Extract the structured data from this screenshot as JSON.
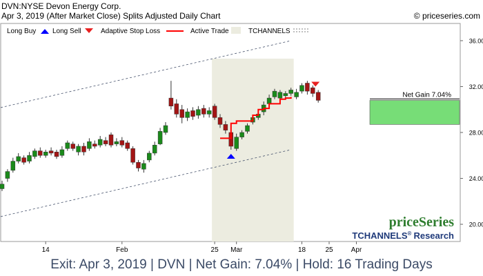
{
  "header": {
    "symbol_line": "DVN:NYSE Devon Energy Corp.",
    "date_line": "Apr 3, 2019 (After Market Close)  Splits Adjusted Daily Chart",
    "copyright": "© priceseries.com"
  },
  "legend": {
    "long_buy": "Long Buy",
    "long_sell": "Long Sell",
    "adaptive_stop": "Adaptive Stop Loss",
    "active_trade": "Active Trade",
    "tchannels": "TCHANNELS"
  },
  "colors": {
    "up_candle": "#1a8a1a",
    "down_candle": "#a31515",
    "stop_line": "#ff0000",
    "trade_shade": "#ecece0",
    "buy_arrow": "#0000ff",
    "sell_arrow": "#e82020",
    "gain_box": "#77dd77",
    "footer_text": "#3b4a66"
  },
  "branding": {
    "logo": "priceSeries",
    "sub": "TCHANNELS",
    "sup": "®",
    "research": "Research"
  },
  "annotation": {
    "net_gain_label": "Net Gain 7.04%"
  },
  "footer": {
    "text": "Exit: Apr 3, 2019 | DVN | Net Gain: 7.04% | Hold: 16 Trading Days"
  },
  "chart_data": {
    "type": "candlestick",
    "ylim": [
      18.5,
      37.5
    ],
    "y_ticks": [
      20,
      24,
      28,
      32,
      36
    ],
    "y_tick_labels": [
      "20.00",
      "24.00",
      "28.00",
      "32.00",
      "36.00"
    ],
    "x_tick_labels": [
      {
        "label": "14",
        "index": 8
      },
      {
        "label": "Feb",
        "index": 22
      },
      {
        "label": "25",
        "index": 39
      },
      {
        "label": "Mar",
        "index": 43
      },
      {
        "label": "18",
        "index": 55
      },
      {
        "label": "25",
        "index": 60
      },
      {
        "label": "Apr",
        "index": 65
      }
    ],
    "candles": [
      {
        "o": 23.1,
        "c": 23.5,
        "h": 23.8,
        "l": 22.9
      },
      {
        "o": 24.0,
        "c": 24.6,
        "h": 24.8,
        "l": 23.7
      },
      {
        "o": 24.7,
        "c": 25.5,
        "h": 25.8,
        "l": 24.5
      },
      {
        "o": 25.5,
        "c": 25.9,
        "h": 26.2,
        "l": 25.3
      },
      {
        "o": 25.8,
        "c": 25.4,
        "h": 26.0,
        "l": 25.2
      },
      {
        "o": 25.5,
        "c": 26.0,
        "h": 26.3,
        "l": 25.3
      },
      {
        "o": 25.9,
        "c": 26.4,
        "h": 26.6,
        "l": 25.7
      },
      {
        "o": 26.4,
        "c": 26.0,
        "h": 26.7,
        "l": 25.8
      },
      {
        "o": 26.0,
        "c": 26.3,
        "h": 26.5,
        "l": 25.8
      },
      {
        "o": 26.4,
        "c": 26.2,
        "h": 26.7,
        "l": 26.0
      },
      {
        "o": 26.3,
        "c": 25.9,
        "h": 26.5,
        "l": 25.7
      },
      {
        "o": 26.0,
        "c": 26.5,
        "h": 26.8,
        "l": 25.8
      },
      {
        "o": 26.6,
        "c": 27.1,
        "h": 27.3,
        "l": 26.4
      },
      {
        "o": 27.0,
        "c": 26.6,
        "h": 27.2,
        "l": 26.4
      },
      {
        "o": 26.3,
        "c": 26.8,
        "h": 27.0,
        "l": 26.0
      },
      {
        "o": 26.8,
        "c": 26.3,
        "h": 27.1,
        "l": 26.0
      },
      {
        "o": 26.6,
        "c": 27.2,
        "h": 27.5,
        "l": 26.4
      },
      {
        "o": 27.0,
        "c": 26.8,
        "h": 27.3,
        "l": 26.6
      },
      {
        "o": 26.9,
        "c": 27.4,
        "h": 27.7,
        "l": 26.7
      },
      {
        "o": 27.3,
        "c": 27.0,
        "h": 27.6,
        "l": 26.8
      },
      {
        "o": 27.8,
        "c": 26.9,
        "h": 28.0,
        "l": 26.7
      },
      {
        "o": 27.0,
        "c": 27.2,
        "h": 27.5,
        "l": 26.8
      },
      {
        "o": 27.3,
        "c": 26.9,
        "h": 27.6,
        "l": 26.7
      },
      {
        "o": 27.1,
        "c": 26.6,
        "h": 27.3,
        "l": 26.4
      },
      {
        "o": 26.6,
        "c": 25.4,
        "h": 26.8,
        "l": 25.2
      },
      {
        "o": 25.4,
        "c": 24.9,
        "h": 25.6,
        "l": 24.6
      },
      {
        "o": 24.8,
        "c": 25.3,
        "h": 25.6,
        "l": 24.5
      },
      {
        "o": 25.6,
        "c": 26.2,
        "h": 26.4,
        "l": 25.4
      },
      {
        "o": 26.2,
        "c": 26.9,
        "h": 27.2,
        "l": 26.0
      },
      {
        "o": 27.0,
        "c": 28.1,
        "h": 28.4,
        "l": 26.9
      },
      {
        "o": 28.0,
        "c": 28.6,
        "h": 28.9,
        "l": 27.8
      },
      {
        "o": 31.0,
        "c": 30.3,
        "h": 32.5,
        "l": 30.0
      },
      {
        "o": 30.5,
        "c": 29.6,
        "h": 30.9,
        "l": 29.3
      },
      {
        "o": 30.0,
        "c": 29.3,
        "h": 30.4,
        "l": 28.8
      },
      {
        "o": 29.3,
        "c": 29.8,
        "h": 30.1,
        "l": 29.0
      },
      {
        "o": 29.9,
        "c": 29.4,
        "h": 30.2,
        "l": 29.1
      },
      {
        "o": 29.5,
        "c": 30.0,
        "h": 30.3,
        "l": 29.2
      },
      {
        "o": 30.1,
        "c": 29.6,
        "h": 30.4,
        "l": 29.3
      },
      {
        "o": 29.6,
        "c": 29.9,
        "h": 30.2,
        "l": 29.3
      },
      {
        "o": 30.3,
        "c": 29.3,
        "h": 30.5,
        "l": 29.1
      },
      {
        "o": 29.3,
        "c": 28.7,
        "h": 29.6,
        "l": 28.4
      },
      {
        "o": 28.7,
        "c": 28.2,
        "h": 29.0,
        "l": 27.9
      },
      {
        "o": 28.0,
        "c": 26.8,
        "h": 28.2,
        "l": 26.5
      },
      {
        "o": 26.6,
        "c": 27.6,
        "h": 27.9,
        "l": 26.4
      },
      {
        "o": 27.6,
        "c": 28.0,
        "h": 28.2,
        "l": 27.4
      },
      {
        "o": 28.1,
        "c": 28.6,
        "h": 28.8,
        "l": 27.9
      },
      {
        "o": 28.9,
        "c": 29.3,
        "h": 29.5,
        "l": 28.7
      },
      {
        "o": 29.3,
        "c": 29.6,
        "h": 29.8,
        "l": 29.1
      },
      {
        "o": 29.8,
        "c": 30.4,
        "h": 30.7,
        "l": 29.5
      },
      {
        "o": 30.5,
        "c": 31.0,
        "h": 31.3,
        "l": 30.3
      },
      {
        "o": 31.1,
        "c": 31.6,
        "h": 31.8,
        "l": 30.9
      },
      {
        "o": 31.0,
        "c": 31.5,
        "h": 31.7,
        "l": 30.7
      },
      {
        "o": 31.2,
        "c": 31.4,
        "h": 31.6,
        "l": 31.0
      },
      {
        "o": 31.4,
        "c": 31.7,
        "h": 31.9,
        "l": 31.2
      },
      {
        "o": 31.1,
        "c": 31.5,
        "h": 31.8,
        "l": 30.9
      },
      {
        "o": 31.6,
        "c": 32.1,
        "h": 32.3,
        "l": 31.4
      },
      {
        "o": 32.3,
        "c": 31.6,
        "h": 32.5,
        "l": 31.3
      },
      {
        "o": 31.9,
        "c": 31.4,
        "h": 32.1,
        "l": 31.1
      },
      {
        "o": 31.5,
        "c": 30.8,
        "h": 31.7,
        "l": 30.6
      }
    ],
    "stop_line": [
      {
        "i": 40,
        "y": 27.5
      },
      {
        "i": 41,
        "y": 27.5
      },
      {
        "i": 42,
        "y": 28.8
      },
      {
        "i": 43,
        "y": 29.0
      },
      {
        "i": 44,
        "y": 29.0
      },
      {
        "i": 45,
        "y": 29.0
      },
      {
        "i": 46,
        "y": 29.5
      },
      {
        "i": 47,
        "y": 30.0
      },
      {
        "i": 48,
        "y": 30.1
      },
      {
        "i": 49,
        "y": 30.5
      },
      {
        "i": 50,
        "y": 30.5
      },
      {
        "i": 51,
        "y": 30.9
      },
      {
        "i": 52,
        "y": 31.0
      },
      {
        "i": 53,
        "y": 31.1
      }
    ],
    "channel_upper": [
      {
        "i": 0,
        "y": 30.2
      },
      {
        "i": 53,
        "y": 36.0
      }
    ],
    "channel_lower": [
      {
        "i": 0,
        "y": 20.7
      },
      {
        "i": 53,
        "y": 26.5
      }
    ],
    "buy_index": 42,
    "sell_index": 58,
    "trade_start_index": 39,
    "trade_end_index": 53,
    "net_gain_band": [
      28.7,
      30.8
    ]
  }
}
